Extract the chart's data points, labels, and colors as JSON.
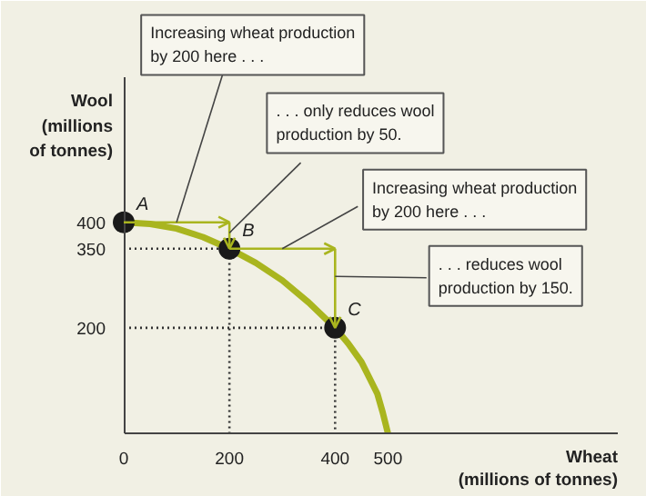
{
  "chart_data": {
    "type": "line",
    "xlabel": "Wheat\n(millions of tonnes)",
    "ylabel": "Wool\n(millions\nof tonnes)",
    "xlim": [
      0,
      935
    ],
    "ylim": [
      0,
      675
    ],
    "xticks": [
      0,
      200,
      400,
      500
    ],
    "yticks": [
      200,
      350,
      400
    ],
    "grid": false,
    "series": [
      {
        "color": "#a9b51f",
        "x": [
          0,
          50,
          100,
          150,
          200,
          250,
          300,
          350,
          400,
          425,
          450,
          465,
          480,
          490,
          500
        ],
        "values": [
          400,
          397,
          388,
          372,
          350,
          323,
          290,
          248,
          200,
          170,
          135,
          105,
          75,
          40,
          0
        ]
      },
      {
        "type": "scatter",
        "color": "#1a1a1a",
        "x": [
          0,
          200,
          400
        ],
        "values": [
          400,
          350,
          200
        ],
        "marker": "circle"
      },
      {
        "type": "line",
        "color": "#333333",
        "line_style": "dotted",
        "x": [
          0,
          200,
          200
        ],
        "values": [
          350,
          350,
          0
        ]
      },
      {
        "type": "line",
        "color": "#333333",
        "line_style": "dotted",
        "x": [
          0,
          400,
          400
        ],
        "values": [
          200,
          200,
          0
        ]
      }
    ],
    "annotations": [
      {
        "text": "A",
        "x": 0,
        "y": 400
      },
      {
        "text": "B",
        "x": 200,
        "y": 350
      },
      {
        "text": "C",
        "x": 400,
        "y": 200
      },
      {
        "text": "Increasing wheat production\nby 200 here . . .",
        "x": 100,
        "y": 400
      },
      {
        "text": ". . . only reduces wool\nproduction by 50.",
        "x": 200,
        "y": 380
      },
      "Increasing wheat production\nby 200 here . . .",
      ". . . reduces wool\nproduction by 150."
    ]
  }
}
